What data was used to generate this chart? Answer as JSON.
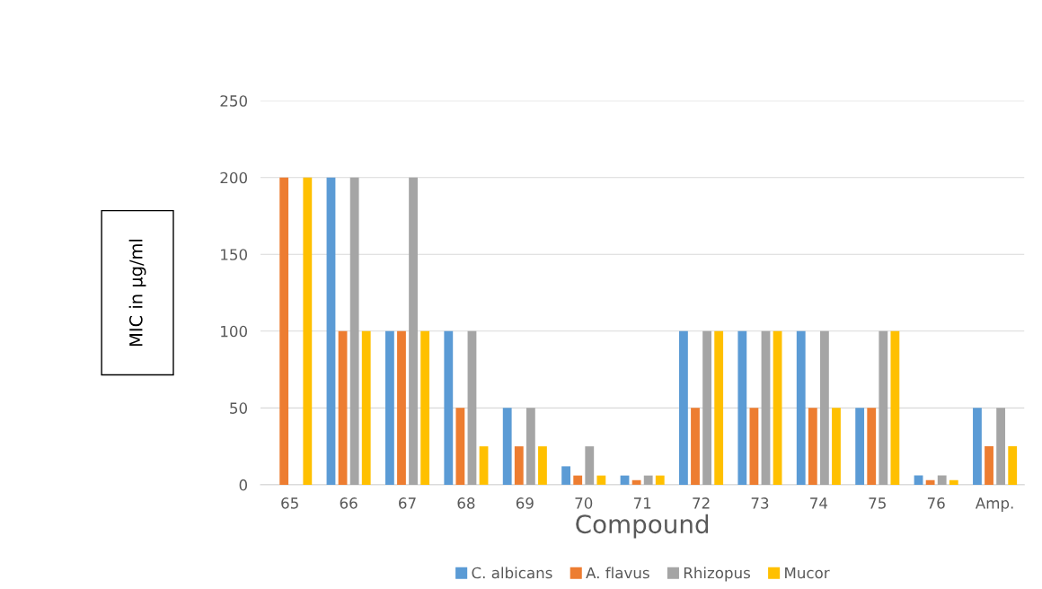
{
  "chart_data": {
    "type": "bar",
    "xlabel": "Compound",
    "ylabel": "MIC in µg/ml",
    "categories": [
      "65",
      "66",
      "67",
      "68",
      "69",
      "70",
      "71",
      "72",
      "73",
      "74",
      "75",
      "76",
      "Amp."
    ],
    "series": [
      {
        "name": "C. albicans",
        "color": "#5b9bd5",
        "values": [
          0,
          200,
          100,
          100,
          50,
          12,
          6,
          100,
          100,
          100,
          50,
          6,
          50
        ]
      },
      {
        "name": "A. flavus",
        "color": "#ed7d31",
        "values": [
          200,
          100,
          100,
          50,
          25,
          6,
          3,
          50,
          50,
          50,
          50,
          3,
          25
        ]
      },
      {
        "name": "Rhizopus",
        "color": "#a5a5a5",
        "values": [
          0,
          200,
          200,
          100,
          50,
          25,
          6,
          100,
          100,
          100,
          100,
          6,
          50
        ]
      },
      {
        "name": "Mucor",
        "color": "#ffc000",
        "values": [
          200,
          100,
          100,
          25,
          25,
          6,
          6,
          100,
          100,
          50,
          100,
          3,
          25
        ]
      }
    ],
    "ylim": [
      0,
      250
    ],
    "yticks": [
      0,
      50,
      100,
      150,
      200,
      250
    ],
    "grid": "y",
    "legend": "bottom"
  }
}
